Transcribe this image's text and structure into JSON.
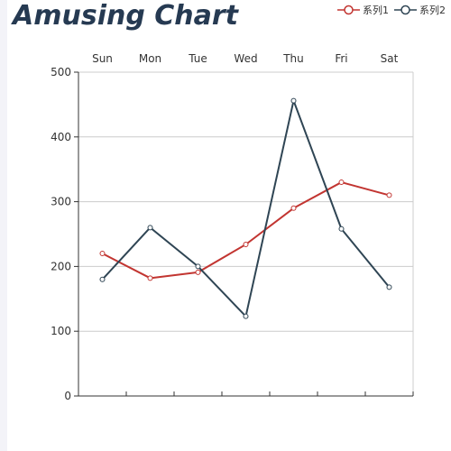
{
  "chart_data": {
    "type": "line",
    "title": "Amusing Chart",
    "categories": [
      "Sun",
      "Mon",
      "Tue",
      "Wed",
      "Thu",
      "Fri",
      "Sat"
    ],
    "x_axis_position": "top",
    "ylim": [
      0,
      500
    ],
    "yticks": [
      0,
      100,
      200,
      300,
      400,
      500
    ],
    "grid": true,
    "legend_position": "top-right",
    "series": [
      {
        "name": "系列1",
        "color": "#c23531",
        "values": [
          220,
          182,
          191,
          234,
          290,
          330,
          310
        ]
      },
      {
        "name": "系列2",
        "color": "#2f4554",
        "values": [
          180,
          260,
          200,
          123,
          456,
          258,
          168
        ]
      }
    ]
  }
}
